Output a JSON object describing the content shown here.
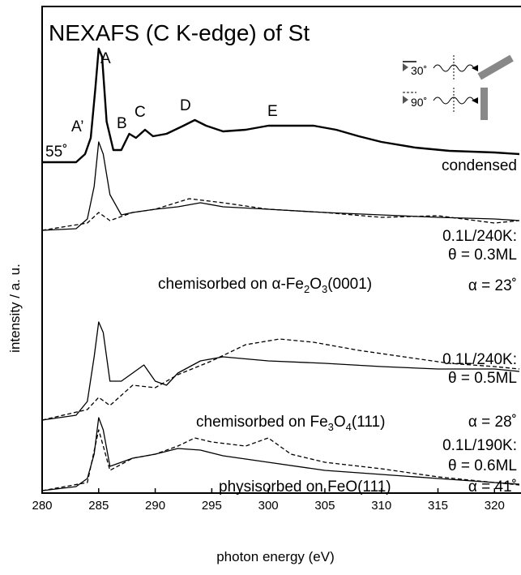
{
  "chart_data": {
    "type": "line",
    "title": "NEXAFS (C K-edge) of St",
    "x_label": "photon energy (eV)",
    "y_label": "intensity / a. u.",
    "xlim": [
      280,
      322.2
    ],
    "ylim": [
      0,
      600
    ],
    "xticks": [
      280,
      285,
      290,
      295,
      300,
      305,
      310,
      315,
      320
    ],
    "series": [
      {
        "name": "condensed",
        "color": "#000000",
        "style": "solid",
        "width": 2.4,
        "x": [
          280,
          283,
          283.8,
          284.3,
          284.7,
          285,
          285.3,
          285.7,
          286.3,
          287,
          287.7,
          288.3,
          289.1,
          289.8,
          291,
          292.5,
          293.5,
          294.5,
          296,
          298,
          300,
          302,
          304,
          306,
          308,
          310,
          313,
          316,
          320,
          322.2
        ],
        "values": [
          408,
          408,
          418,
          438,
          498,
          548,
          538,
          458,
          423,
          423,
          443,
          438,
          448,
          440,
          443,
          453,
          460,
          453,
          446,
          448,
          453,
          453,
          453,
          448,
          440,
          433,
          426,
          422,
          420,
          418
        ]
      },
      {
        "color": "#000000",
        "style": "solid",
        "width": 1.3,
        "x": [
          280,
          283,
          284,
          284.6,
          285,
          285.4,
          286,
          287,
          288,
          290,
          292,
          294,
          296,
          300,
          305,
          310,
          315,
          320,
          322.2
        ],
        "values": [
          324,
          326,
          338,
          378,
          433,
          418,
          368,
          343,
          346,
          350,
          353,
          358,
          353,
          350,
          346,
          343,
          340,
          338,
          336
        ]
      },
      {
        "color": "#000000",
        "style": "dashed",
        "width": 1.3,
        "x": [
          280,
          284,
          285,
          286,
          288,
          290,
          293,
          296,
          300,
          305,
          310,
          315,
          320,
          322.2
        ],
        "values": [
          324,
          333,
          346,
          336,
          346,
          350,
          363,
          358,
          350,
          346,
          340,
          342,
          333,
          336
        ]
      },
      {
        "color": "#000000",
        "style": "solid",
        "width": 1.3,
        "x": [
          280,
          283,
          284,
          284.6,
          285,
          285.4,
          286,
          287,
          288,
          289,
          290,
          291,
          292,
          294,
          296,
          300,
          305,
          310,
          315,
          320,
          322.2
        ],
        "values": [
          90,
          96,
          113,
          168,
          211,
          198,
          138,
          138,
          148,
          158,
          138,
          133,
          148,
          163,
          168,
          163,
          160,
          156,
          153,
          153,
          150
        ]
      },
      {
        "color": "#000000",
        "style": "dashed",
        "width": 1.3,
        "x": [
          280,
          284,
          285,
          286,
          288,
          290,
          292,
          295,
          298,
          301,
          304,
          308,
          312,
          316,
          320,
          322.2
        ],
        "values": [
          90,
          103,
          118,
          108,
          133,
          130,
          146,
          163,
          183,
          190,
          186,
          176,
          168,
          160,
          156,
          153
        ]
      },
      {
        "color": "#000000",
        "style": "solid",
        "width": 1.3,
        "x": [
          280,
          283,
          284,
          284.6,
          285,
          285.4,
          286,
          287,
          288,
          290,
          292,
          294,
          296,
          300,
          305,
          310,
          315,
          320,
          322.2
        ],
        "values": [
          3,
          8,
          18,
          48,
          93,
          78,
          33,
          38,
          43,
          48,
          55,
          53,
          46,
          38,
          28,
          23,
          18,
          13,
          11
        ]
      },
      {
        "color": "#000000",
        "style": "dashed",
        "width": 1.3,
        "x": [
          280,
          284,
          285,
          285.5,
          286,
          288,
          290,
          292,
          293.5,
          295,
          298,
          300,
          302,
          305,
          310,
          315,
          320,
          322.2
        ],
        "values": [
          3,
          13,
          78,
          53,
          28,
          43,
          48,
          58,
          68,
          63,
          58,
          68,
          48,
          38,
          30,
          20,
          13,
          10
        ]
      }
    ],
    "annotations": {
      "a_prime": "A’",
      "a": "A",
      "b": "B",
      "c": "C",
      "d": "D",
      "e": "E",
      "angle": "55˚",
      "inset_30": "30˚",
      "inset_90": "90˚",
      "dose1": "0.1L/240K:",
      "cov1": "θ = 0.3ML",
      "sub1": [
        {
          "text": "chemisorbed on α-Fe",
          "sub": false
        },
        {
          "text": "2",
          "sub": true
        },
        {
          "text": "O",
          "sub": false
        },
        {
          "text": "3",
          "sub": true
        },
        {
          "text": "(0001)",
          "sub": false
        }
      ],
      "alpha1": "α = 23˚",
      "dose2": "0.1L/240K:",
      "cov2": "θ = 0.5ML",
      "sub2": [
        {
          "text": "chemisorbed on Fe",
          "sub": false
        },
        {
          "text": "3",
          "sub": true
        },
        {
          "text": "O",
          "sub": false
        },
        {
          "text": "4",
          "sub": true
        },
        {
          "text": "(111)",
          "sub": false
        }
      ],
      "alpha2": "α = 28˚",
      "dose3": "0.1L/190K:",
      "cov3": "θ = 0.6ML",
      "sub3": [
        {
          "text": "physisorbed on FeO(111)",
          "sub": false
        }
      ],
      "alpha3": "α = 41˚"
    }
  }
}
